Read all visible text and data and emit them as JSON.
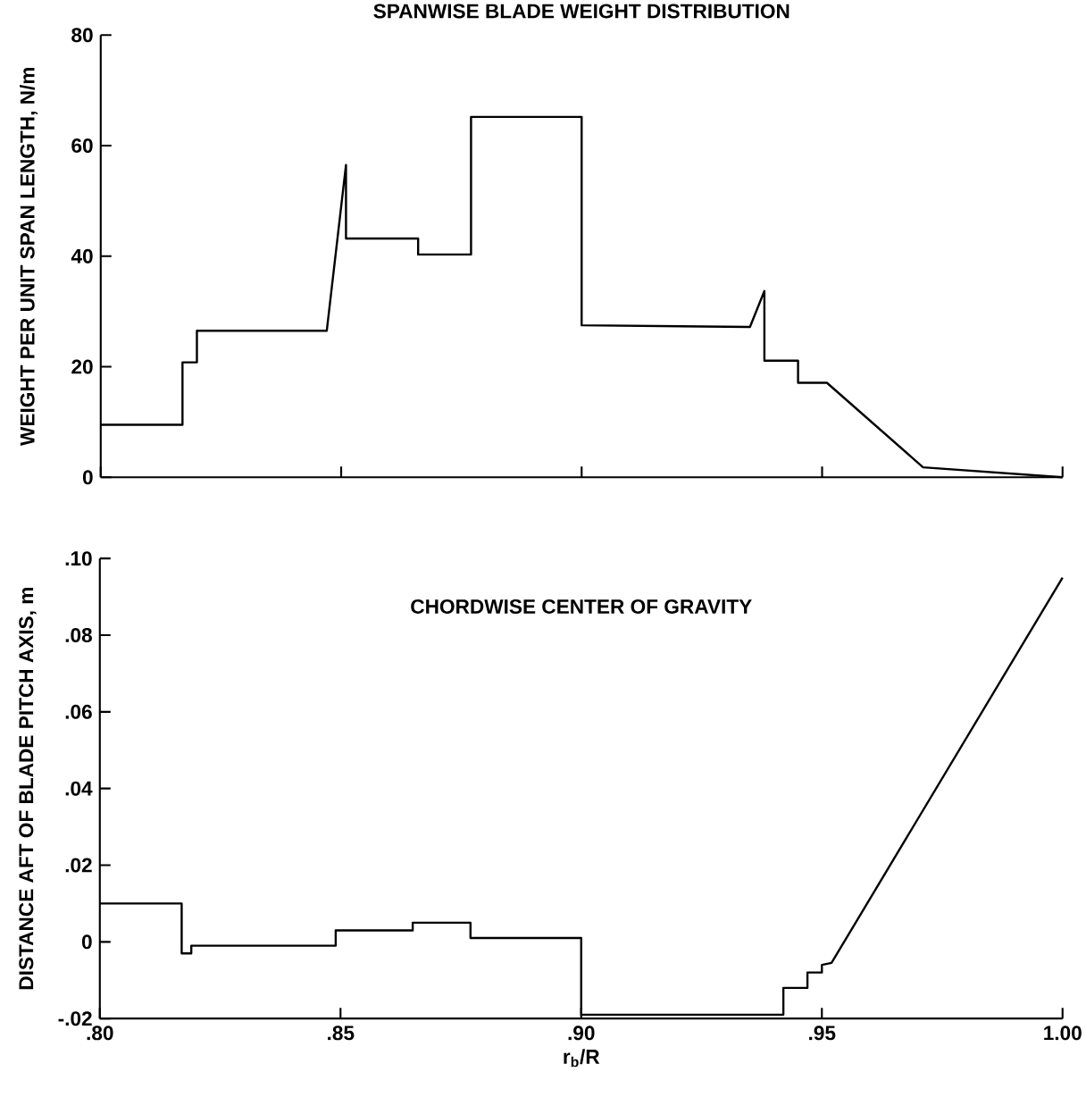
{
  "chart_data": [
    {
      "type": "line",
      "title": "SPANWISE BLADE WEIGHT DISTRIBUTION",
      "ylabel": "WEIGHT PER UNIT SPAN LENGTH, N/m",
      "x": [
        0.8,
        0.817,
        0.817,
        0.82,
        0.82,
        0.847,
        0.851,
        0.851,
        0.866,
        0.866,
        0.877,
        0.877,
        0.9,
        0.9,
        0.935,
        0.938,
        0.938,
        0.945,
        0.945,
        0.951,
        0.971,
        1.0
      ],
      "series": [
        {
          "color": "#000000",
          "values": [
            9.5,
            9.5,
            20.8,
            20.8,
            26.5,
            26.5,
            56.5,
            43.2,
            43.2,
            40.3,
            40.3,
            65.2,
            65.2,
            27.5,
            27.2,
            33.7,
            21.1,
            21.1,
            17.1,
            17.1,
            1.8,
            0
          ]
        }
      ],
      "xlim": [
        0.8,
        1.0
      ],
      "ylim": [
        0,
        80
      ],
      "xticks": [
        {
          "value": 0.8,
          "label": null
        },
        {
          "value": 0.85,
          "label": null
        },
        {
          "value": 0.9,
          "label": null
        },
        {
          "value": 0.95,
          "label": null
        },
        {
          "value": 1.0,
          "label": null
        }
      ],
      "yticks": [
        0,
        20,
        40,
        60,
        80
      ],
      "tick_labels": "y"
    },
    {
      "type": "line",
      "title": "CHORDWISE CENTER OF GRAVITY",
      "xlabel": "r$_{b}$/R",
      "ylabel": "DISTANCE AFT OF BLADE PITCH AXIS, m",
      "x": [
        0.8,
        0.817,
        0.817,
        0.819,
        0.819,
        0.849,
        0.849,
        0.865,
        0.865,
        0.877,
        0.877,
        0.9,
        0.9,
        0.942,
        0.942,
        0.947,
        0.947,
        0.95,
        0.95,
        0.952,
        1.0
      ],
      "series": [
        {
          "color": "#000000",
          "values": [
            0.01,
            0.01,
            -0.003,
            -0.003,
            -0.001,
            -0.001,
            0.003,
            0.003,
            0.005,
            0.005,
            0.001,
            0.001,
            -0.019,
            -0.019,
            -0.012,
            -0.012,
            -0.008,
            -0.008,
            -0.006,
            -0.0055,
            0.095
          ]
        }
      ],
      "xlim": [
        0.8,
        1.0
      ],
      "ylim": [
        -0.02,
        0.1
      ],
      "xticks": [
        {
          "value": 0.8,
          "label": ".80"
        },
        {
          "value": 0.85,
          "label": ".85"
        },
        {
          "value": 0.9,
          "label": ".90"
        },
        {
          "value": 0.95,
          "label": ".95"
        },
        {
          "value": 1.0,
          "label": "1.00"
        }
      ],
      "yticks": [
        {
          "value": -0.02,
          "label": "-.02"
        },
        {
          "value": 0,
          "label": "0"
        },
        {
          "value": 0.02,
          "label": ".02"
        },
        {
          "value": 0.04,
          "label": ".04"
        },
        {
          "value": 0.06,
          "label": ".06"
        },
        {
          "value": 0.08,
          "label": ".08"
        },
        {
          "value": 0.1,
          "label": ".10"
        }
      ]
    }
  ]
}
